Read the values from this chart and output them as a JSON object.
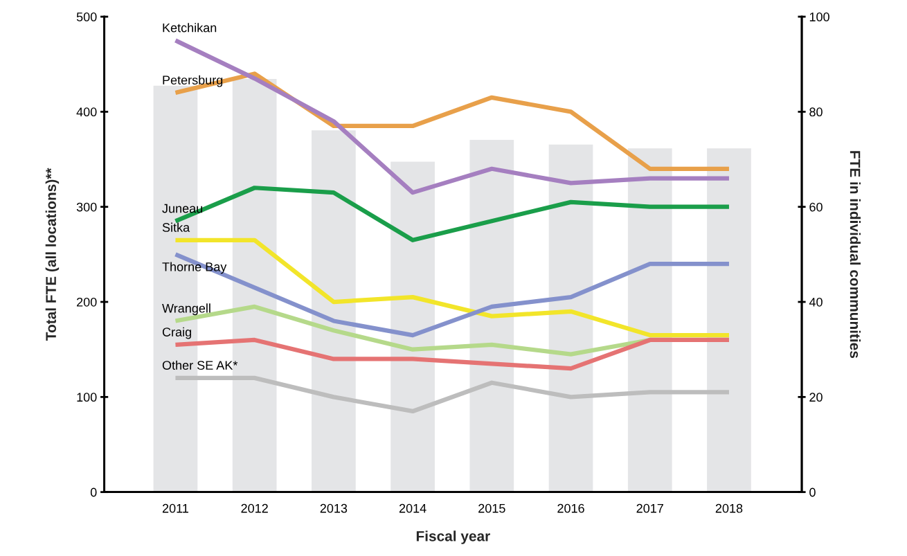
{
  "chart_data": {
    "type": "bar",
    "categories": [
      "2011",
      "2012",
      "2013",
      "2014",
      "2015",
      "2016",
      "2017",
      "2018"
    ],
    "xlabel": "Fiscal year",
    "ylabel": "Total FTE (all locations)**",
    "y2label": "FTE in individual communities",
    "ylim": [
      0,
      500
    ],
    "yticks": [
      0,
      100,
      200,
      300,
      400,
      500
    ],
    "y2lim": [
      0,
      100
    ],
    "y2ticks": [
      0,
      20,
      40,
      60,
      80,
      100
    ],
    "grid": false,
    "legend": false,
    "series": [
      {
        "color": "#e4e5e7",
        "values": [
          428,
          435,
          381,
          348,
          371,
          366,
          362,
          362
        ]
      },
      {
        "type": "line",
        "axis": "y2",
        "name": "Petersburg",
        "color": "#e8a04a",
        "values": [
          84,
          88,
          77,
          77,
          83,
          80,
          68,
          68
        ]
      },
      {
        "type": "line",
        "axis": "y2",
        "name": "Ketchikan",
        "color": "#a57fc0",
        "values": [
          95,
          87,
          78,
          63,
          68,
          65,
          66,
          66
        ]
      },
      {
        "type": "line",
        "axis": "y2",
        "name": "Juneau",
        "color": "#1a9e4a",
        "values": [
          57,
          64,
          63,
          53,
          57,
          61,
          60,
          60
        ]
      },
      {
        "type": "line",
        "axis": "y2",
        "name": "Sitka",
        "color": "#f2e52a",
        "values": [
          53,
          53,
          40,
          41,
          37,
          38,
          33,
          33
        ]
      },
      {
        "type": "line",
        "axis": "y2",
        "name": "Thorne Bay",
        "color": "#8491cc",
        "values": [
          50,
          43,
          36,
          33,
          39,
          41,
          48,
          48
        ]
      },
      {
        "type": "line",
        "axis": "y2",
        "name": "Wrangell",
        "color": "#b5d98a",
        "values": [
          36,
          39,
          34,
          30,
          31,
          29,
          32,
          32
        ]
      },
      {
        "type": "line",
        "axis": "y2",
        "name": "Craig",
        "color": "#e57373",
        "values": [
          31,
          32,
          28,
          28,
          27,
          26,
          32,
          32
        ]
      },
      {
        "type": "line",
        "axis": "y2",
        "name": "Other SE AK*",
        "color": "#bdbdbd",
        "values": [
          24,
          24,
          20,
          17,
          23,
          20,
          21,
          21
        ]
      }
    ]
  }
}
